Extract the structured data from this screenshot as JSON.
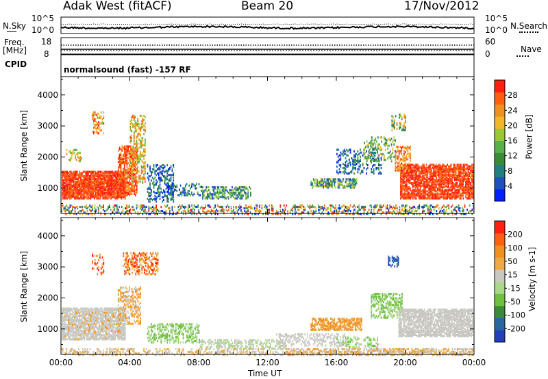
{
  "header": {
    "station": "Adak West (fitACF)",
    "beam": "Beam 20",
    "date": "17/Nov/2012"
  },
  "noise_panel": {
    "left_label": "N.Sky",
    "right_label": "N.Search",
    "left_ticks": [
      "10^5",
      "10^0"
    ],
    "right_ticks": [
      "10^5",
      "10^0"
    ]
  },
  "freq_panel": {
    "left_label_line1": "Freq.",
    "left_label_line2": "[MHz]",
    "left_ticks": [
      "18",
      "8"
    ],
    "right_ticks": [
      "60",
      "0"
    ],
    "right_label": "Nave"
  },
  "cpid_panel": {
    "label": "CPID",
    "mode": "normalsound (fast) -157 RF"
  },
  "chart_data": [
    {
      "type": "heatmap",
      "name": "power",
      "ylabel": "Slant Range [km]",
      "ylim": [
        180,
        4590
      ],
      "yticks": [
        "1000",
        "2000",
        "3000",
        "4000"
      ],
      "xlabel": "",
      "xlim_hours": [
        0,
        24
      ],
      "colorbar": {
        "label": "Power [dB]",
        "range": [
          0,
          32
        ],
        "ticks": [
          "4",
          "8",
          "12",
          "16",
          "20",
          "24",
          "28"
        ],
        "colors": [
          "#0020ff",
          "#2050c0",
          "#208080",
          "#3a8a3a",
          "#58b048",
          "#98c838",
          "#f0b828",
          "#f09020",
          "#ff6010",
          "#ff2010"
        ]
      }
    },
    {
      "type": "heatmap",
      "name": "velocity",
      "ylabel": "Slant Range [km]",
      "ylim": [
        180,
        4590
      ],
      "yticks": [
        "1000",
        "2000",
        "3000",
        "4000"
      ],
      "xlabel": "Time UT",
      "xticks": [
        "00:00",
        "04:00",
        "08:00",
        "12:00",
        "16:00",
        "20:00",
        "00:00"
      ],
      "xlim_hours": [
        0,
        24
      ],
      "colorbar": {
        "label": "Velocity [m s-1]",
        "range": [
          -250,
          250
        ],
        "ticks": [
          "200",
          "100",
          "50",
          "15",
          "-15",
          "-50",
          "-100",
          "-200"
        ],
        "colors": [
          "#2040c0",
          "#2868a0",
          "#3a8a3a",
          "#70c040",
          "#a8d888",
          "#c8c8c0",
          "#f0a840",
          "#f09020",
          "#ff6010",
          "#ff2010"
        ]
      }
    }
  ]
}
